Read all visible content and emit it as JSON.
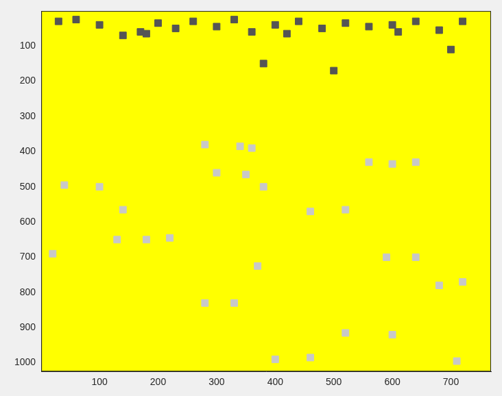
{
  "chart_data": {
    "type": "scatter",
    "color": "#ffff00",
    "xlim": [
      0.5,
      768.5
    ],
    "ylim": [
      0.5,
      1024.5
    ],
    "xticks": [
      100,
      200,
      300,
      400,
      500,
      600,
      700
    ],
    "yticks": [
      100,
      200,
      300,
      400,
      500,
      600,
      700,
      800,
      900,
      1000
    ],
    "grid": false,
    "series": [
      {
        "color": "#555555",
        "marker": "square",
        "x": [
          30,
          60,
          100,
          140,
          170,
          200,
          230,
          260,
          300,
          330,
          360,
          400,
          440,
          480,
          520,
          560,
          600,
          640,
          680,
          720,
          180,
          420,
          610,
          700,
          380,
          500
        ],
        "y": [
          30,
          25,
          40,
          70,
          60,
          35,
          50,
          30,
          45,
          25,
          60,
          40,
          30,
          50,
          35,
          45,
          40,
          30,
          55,
          30,
          65,
          65,
          60,
          110,
          150,
          170
        ]
      },
      {
        "color": "#c8c8c8",
        "marker": "square",
        "x": [
          280,
          340,
          360,
          560,
          600,
          640,
          300,
          350,
          40,
          100,
          380,
          140,
          460,
          520,
          130,
          180,
          220,
          20,
          590,
          640,
          370,
          720,
          680,
          280,
          330,
          520,
          600,
          400,
          460,
          710
        ],
        "y": [
          380,
          385,
          390,
          430,
          435,
          430,
          460,
          465,
          495,
          500,
          500,
          565,
          570,
          565,
          650,
          650,
          645,
          690,
          700,
          700,
          725,
          770,
          780,
          830,
          830,
          915,
          920,
          990,
          985,
          995
        ]
      }
    ]
  }
}
